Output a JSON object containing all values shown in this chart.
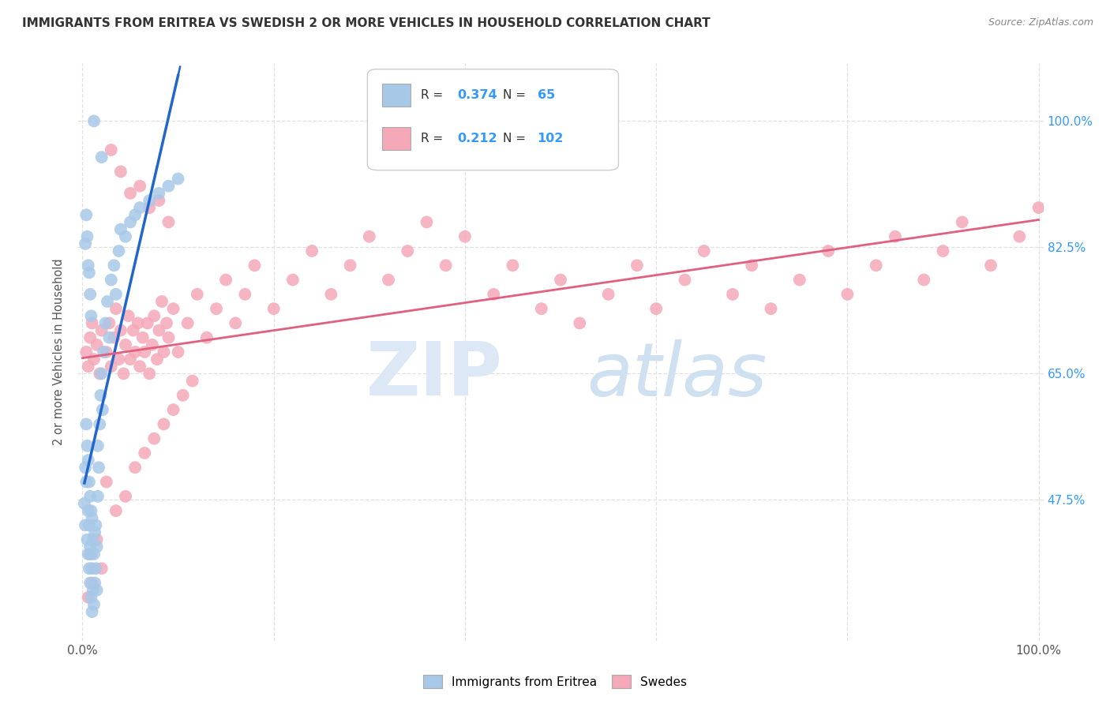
{
  "title": "IMMIGRANTS FROM ERITREA VS SWEDISH 2 OR MORE VEHICLES IN HOUSEHOLD CORRELATION CHART",
  "source": "Source: ZipAtlas.com",
  "ylabel": "2 or more Vehicles in Household",
  "y_tick_labels_right": [
    "47.5%",
    "65.0%",
    "82.5%",
    "100.0%"
  ],
  "y_tick_positions_right": [
    0.475,
    0.65,
    0.825,
    1.0
  ],
  "x_lim": [
    -0.005,
    1.005
  ],
  "y_lim": [
    0.28,
    1.08
  ],
  "legend_blue_label": "Immigrants from Eritrea",
  "legend_pink_label": "Swedes",
  "R_blue": "0.374",
  "N_blue": "65",
  "R_pink": "0.212",
  "N_pink": "102",
  "blue_color": "#a8c8e8",
  "pink_color": "#f5a8b8",
  "blue_line_color": "#2266cc",
  "pink_line_color": "#e06080",
  "blue_scatter_x": [
    0.002,
    0.003,
    0.003,
    0.004,
    0.004,
    0.005,
    0.005,
    0.006,
    0.006,
    0.006,
    0.007,
    0.007,
    0.007,
    0.008,
    0.008,
    0.008,
    0.009,
    0.009,
    0.009,
    0.01,
    0.01,
    0.01,
    0.011,
    0.011,
    0.012,
    0.012,
    0.013,
    0.013,
    0.014,
    0.014,
    0.015,
    0.015,
    0.016,
    0.016,
    0.017,
    0.018,
    0.019,
    0.02,
    0.021,
    0.022,
    0.024,
    0.026,
    0.028,
    0.03,
    0.033,
    0.035,
    0.038,
    0.04,
    0.045,
    0.05,
    0.055,
    0.06,
    0.07,
    0.08,
    0.09,
    0.1,
    0.003,
    0.004,
    0.005,
    0.006,
    0.007,
    0.008,
    0.009,
    0.012,
    0.02
  ],
  "blue_scatter_y": [
    0.47,
    0.52,
    0.44,
    0.5,
    0.58,
    0.42,
    0.55,
    0.4,
    0.46,
    0.53,
    0.38,
    0.44,
    0.5,
    0.36,
    0.41,
    0.48,
    0.34,
    0.4,
    0.46,
    0.32,
    0.38,
    0.45,
    0.35,
    0.42,
    0.33,
    0.4,
    0.36,
    0.43,
    0.38,
    0.44,
    0.35,
    0.41,
    0.48,
    0.55,
    0.52,
    0.58,
    0.62,
    0.65,
    0.6,
    0.68,
    0.72,
    0.75,
    0.7,
    0.78,
    0.8,
    0.76,
    0.82,
    0.85,
    0.84,
    0.86,
    0.87,
    0.88,
    0.89,
    0.9,
    0.91,
    0.92,
    0.83,
    0.87,
    0.84,
    0.8,
    0.79,
    0.76,
    0.73,
    1.0,
    0.95
  ],
  "pink_scatter_x": [
    0.004,
    0.006,
    0.008,
    0.01,
    0.012,
    0.015,
    0.018,
    0.02,
    0.025,
    0.028,
    0.03,
    0.033,
    0.035,
    0.038,
    0.04,
    0.043,
    0.045,
    0.048,
    0.05,
    0.053,
    0.055,
    0.058,
    0.06,
    0.063,
    0.065,
    0.068,
    0.07,
    0.073,
    0.075,
    0.078,
    0.08,
    0.083,
    0.085,
    0.088,
    0.09,
    0.095,
    0.1,
    0.11,
    0.12,
    0.13,
    0.14,
    0.15,
    0.16,
    0.17,
    0.18,
    0.2,
    0.22,
    0.24,
    0.26,
    0.28,
    0.3,
    0.32,
    0.34,
    0.36,
    0.38,
    0.4,
    0.43,
    0.45,
    0.48,
    0.5,
    0.52,
    0.55,
    0.58,
    0.6,
    0.63,
    0.65,
    0.68,
    0.7,
    0.72,
    0.75,
    0.78,
    0.8,
    0.83,
    0.85,
    0.88,
    0.9,
    0.92,
    0.95,
    0.98,
    1.0,
    0.025,
    0.035,
    0.045,
    0.055,
    0.065,
    0.075,
    0.085,
    0.095,
    0.105,
    0.115,
    0.05,
    0.07,
    0.09,
    0.04,
    0.06,
    0.08,
    0.03,
    0.02,
    0.015,
    0.01,
    0.008,
    0.006
  ],
  "pink_scatter_y": [
    0.68,
    0.66,
    0.7,
    0.72,
    0.67,
    0.69,
    0.65,
    0.71,
    0.68,
    0.72,
    0.66,
    0.7,
    0.74,
    0.67,
    0.71,
    0.65,
    0.69,
    0.73,
    0.67,
    0.71,
    0.68,
    0.72,
    0.66,
    0.7,
    0.68,
    0.72,
    0.65,
    0.69,
    0.73,
    0.67,
    0.71,
    0.75,
    0.68,
    0.72,
    0.7,
    0.74,
    0.68,
    0.72,
    0.76,
    0.7,
    0.74,
    0.78,
    0.72,
    0.76,
    0.8,
    0.74,
    0.78,
    0.82,
    0.76,
    0.8,
    0.84,
    0.78,
    0.82,
    0.86,
    0.8,
    0.84,
    0.76,
    0.8,
    0.74,
    0.78,
    0.72,
    0.76,
    0.8,
    0.74,
    0.78,
    0.82,
    0.76,
    0.8,
    0.74,
    0.78,
    0.82,
    0.76,
    0.8,
    0.84,
    0.78,
    0.82,
    0.86,
    0.8,
    0.84,
    0.88,
    0.5,
    0.46,
    0.48,
    0.52,
    0.54,
    0.56,
    0.58,
    0.6,
    0.62,
    0.64,
    0.9,
    0.88,
    0.86,
    0.93,
    0.91,
    0.89,
    0.96,
    0.38,
    0.42,
    0.36,
    0.4,
    0.34
  ],
  "grid_color": "#e0e0e0",
  "grid_style": "--"
}
